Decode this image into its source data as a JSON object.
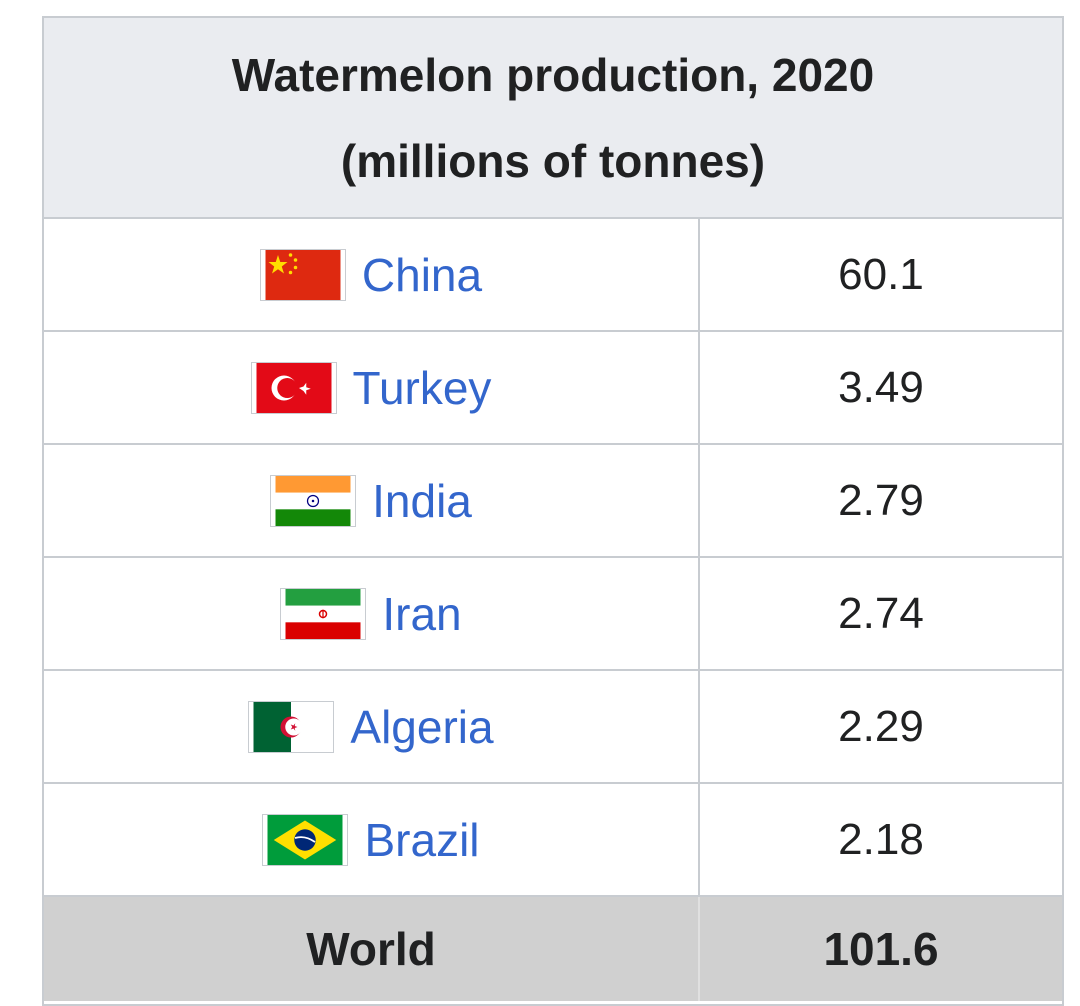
{
  "table": {
    "title_line1": "Watermelon production, 2020",
    "title_line2": "(millions of tonnes)",
    "rows": [
      {
        "country": "China",
        "value": "60.1"
      },
      {
        "country": "Turkey",
        "value": "3.49"
      },
      {
        "country": "India",
        "value": "2.79"
      },
      {
        "country": "Iran",
        "value": "2.74"
      },
      {
        "country": "Algeria",
        "value": "2.29"
      },
      {
        "country": "Brazil",
        "value": "2.18"
      }
    ],
    "total": {
      "label": "World",
      "value": "101.6"
    }
  },
  "colors": {
    "header_bg": "#eaecf0",
    "link": "#3366cc",
    "total_bg": "#d0d0d0",
    "border": "#c8ccd1"
  }
}
